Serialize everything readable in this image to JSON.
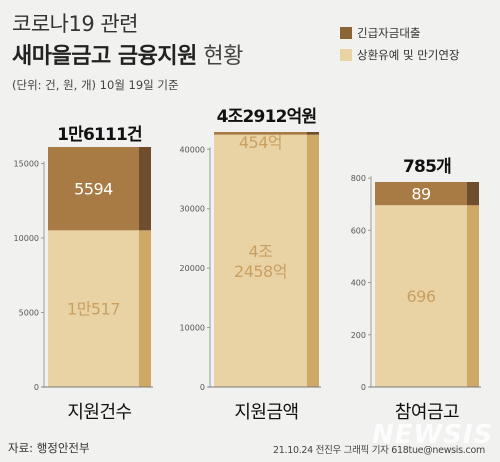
{
  "title_line1": "코로나19 관련",
  "title_bold": "새마을금고 금융지원",
  "title_light": "현황",
  "unit_note": "(단위: 건, 원, 개) 10월 19일 기준",
  "legend": [
    {
      "label": "긴급자금대출",
      "color": "#8b6535"
    },
    {
      "label": "상환유예 및 만기연장",
      "color": "#e9d3a4"
    }
  ],
  "source": "자료: 행정안전부",
  "credit": "21.10.24 전진우 그래픽 기자 618tue@newsis.com",
  "watermark": "NEWSIS",
  "colors": {
    "emergency": "#a87b44",
    "emergency_side": "#6f4e2e",
    "deferral": "#e9d3a4",
    "deferral_side": "#d0a865"
  },
  "chart_data": [
    {
      "type": "bar",
      "category": "지원건수",
      "total_label": "1만6111건",
      "ylim": [
        0,
        16111
      ],
      "yticks": [
        0,
        5000,
        10000,
        15000
      ],
      "tick_labels": [
        "0",
        "5000",
        "10000",
        "15000"
      ],
      "series": [
        {
          "name": "상환유예 및 만기연장",
          "value": 10517,
          "label": "1만517"
        },
        {
          "name": "긴급자금대출",
          "value": 5594,
          "label": "5594"
        }
      ]
    },
    {
      "type": "bar",
      "category": "지원금액",
      "total_label": "4조2912억원",
      "ylim": [
        0,
        42912
      ],
      "yticks": [
        0,
        10000,
        20000,
        30000,
        40000
      ],
      "tick_labels": [
        "0",
        "10000",
        "20000",
        "30000",
        "40000"
      ],
      "series": [
        {
          "name": "상환유예 및 만기연장",
          "value": 42458,
          "label": "4조\n2458억"
        },
        {
          "name": "긴급자금대출",
          "value": 454,
          "label": "454억"
        }
      ]
    },
    {
      "type": "bar",
      "category": "참여금고",
      "total_label": "785개",
      "ylim": [
        0,
        785
      ],
      "yticks": [
        0,
        200,
        400,
        600,
        800
      ],
      "tick_labels": [
        "0",
        "200",
        "400",
        "600",
        "800"
      ],
      "series": [
        {
          "name": "상환유예 및 만기연장",
          "value": 696,
          "label": "696"
        },
        {
          "name": "긴급자금대출",
          "value": 89,
          "label": "89"
        }
      ]
    }
  ]
}
